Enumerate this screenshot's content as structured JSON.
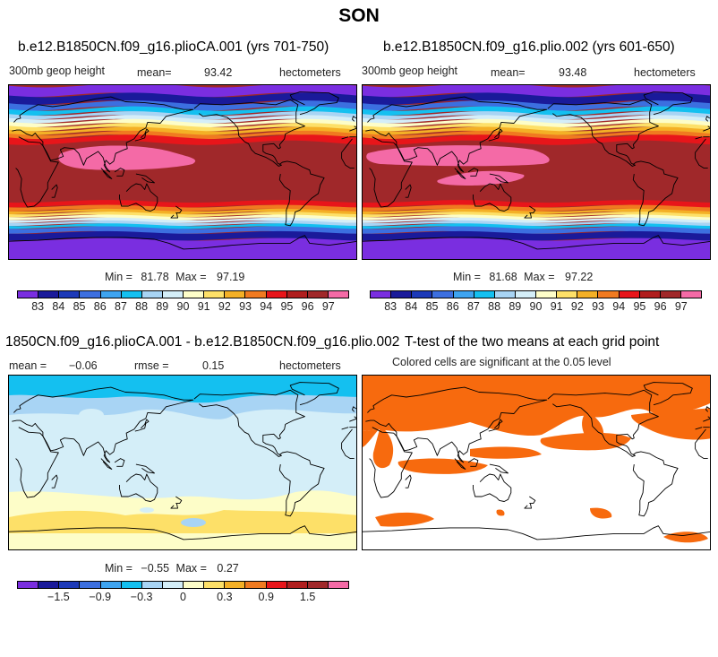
{
  "title": "SON",
  "panels": [
    {
      "id": "ca001",
      "title": "b.e12.B1850CN.f09_g16.plioCA.001 (yrs 701-750)",
      "left_label": "300mb geop height",
      "mean_label": "mean=",
      "mean_value": "93.42",
      "units": "hectometers",
      "min_label": "Min =",
      "min_value": "81.78",
      "max_label": "Max =",
      "max_value": "97.19"
    },
    {
      "id": "plio002",
      "title": "b.e12.B1850CN.f09_g16.plio.002 (yrs 601-650)",
      "left_label": "300mb geop height",
      "mean_label": "mean=",
      "mean_value": "93.48",
      "units": "hectometers",
      "min_label": "Min =",
      "min_value": "81.68",
      "max_label": "Max =",
      "max_value": "97.22"
    },
    {
      "id": "diff",
      "title": "1850CN.f09_g16.plioCA.001 - b.e12.B1850CN.f09_g16.plio.002",
      "mean_label": "mean =",
      "mean_value": "-0.06",
      "rmse_label": "rmse =",
      "rmse_value": "0.15",
      "units": "hectometers",
      "min_label": "Min =",
      "min_value": "-0.55",
      "max_label": "Max =",
      "max_value": "0.27"
    },
    {
      "id": "ttest",
      "title": "T-test of the two means at each grid point",
      "subtitle": "Colored cells are significant at the 0.05 level"
    }
  ],
  "abs_colorbar": {
    "colors": [
      "#7a2ee0",
      "#1a1a9a",
      "#1c39b8",
      "#3c6fe0",
      "#3ea4f0",
      "#14c0f0",
      "#a8d4f4",
      "#d4eef8",
      "#fdfdc8",
      "#fde068",
      "#f4b026",
      "#f07a20",
      "#e8151a",
      "#b01e1e",
      "#a0282a",
      "#f46aa6"
    ],
    "labels": [
      "83",
      "84",
      "85",
      "86",
      "87",
      "88",
      "89",
      "90",
      "91",
      "92",
      "93",
      "94",
      "95",
      "96",
      "97"
    ]
  },
  "diff_colorbar": {
    "colors": [
      "#7a2ee0",
      "#1a1a9a",
      "#1c39b8",
      "#3c6fe0",
      "#3ea4f0",
      "#14c0f0",
      "#a8d4f4",
      "#d4eef8",
      "#fdfdc8",
      "#fde068",
      "#f4b026",
      "#f07a20",
      "#e8151a",
      "#b01e1e",
      "#a0282a",
      "#f46aa6"
    ],
    "labels": [
      "-1.5",
      "-0.9",
      "-0.3",
      "0",
      "0.3",
      "0.9",
      "1.5"
    ]
  },
  "map_colors": {
    "purple": "#7a2ee0",
    "navy": "#1a1a9a",
    "blue": "#3c6fe0",
    "sky": "#14c0f0",
    "lightblue": "#a8d4f4",
    "paleblue": "#d4eef8",
    "paleyellow": "#fdfdc8",
    "yellow": "#fde068",
    "gold": "#f4b026",
    "orange": "#f07a20",
    "red": "#e8151a",
    "darkred": "#a0282a",
    "pink": "#f46aa6",
    "sig_orange": "#f76a0e"
  }
}
